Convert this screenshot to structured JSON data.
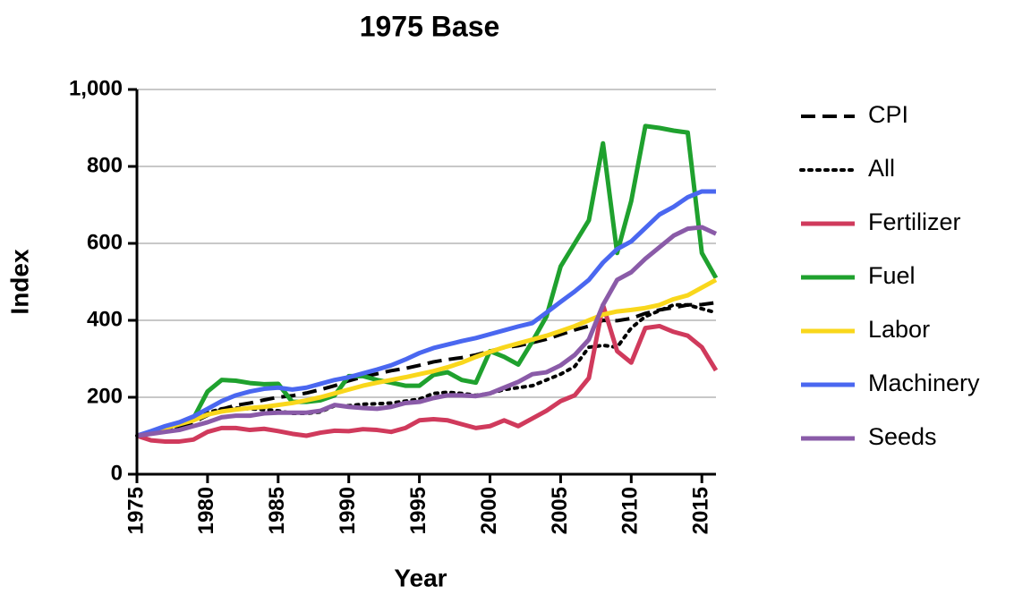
{
  "chart_data": {
    "type": "line",
    "title": "1975 Base",
    "xlabel": "Year",
    "ylabel": "Index",
    "x": [
      1975,
      1976,
      1977,
      1978,
      1979,
      1980,
      1981,
      1982,
      1983,
      1984,
      1985,
      1986,
      1987,
      1988,
      1989,
      1990,
      1991,
      1992,
      1993,
      1994,
      1995,
      1996,
      1997,
      1998,
      1999,
      2000,
      2001,
      2002,
      2003,
      2004,
      2005,
      2006,
      2007,
      2008,
      2009,
      2010,
      2011,
      2012,
      2013,
      2014,
      2015,
      2016
    ],
    "xlim": [
      1975,
      2016
    ],
    "xticks": [
      1975,
      1980,
      1985,
      1990,
      1995,
      2000,
      2005,
      2010,
      2015
    ],
    "ylim": [
      0,
      1000
    ],
    "yticks": [
      0,
      200,
      400,
      600,
      800,
      {
        "value": 1000,
        "label": "1,000"
      }
    ],
    "grid": true,
    "legend": "right",
    "series": [
      {
        "name": "CPI",
        "color": "#000000",
        "style": "dashed",
        "values": [
          100,
          106,
          113,
          121,
          135,
          153,
          169,
          179,
          185,
          193,
          200,
          204,
          211,
          220,
          230,
          243,
          253,
          261,
          269,
          275,
          283,
          292,
          298,
          303,
          310,
          320,
          329,
          334,
          342,
          351,
          363,
          375,
          385,
          400,
          399,
          405,
          418,
          427,
          433,
          440,
          441,
          446
        ]
      },
      {
        "name": "All",
        "color": "#000000",
        "style": "dotted",
        "values": [
          100,
          105,
          113,
          125,
          145,
          160,
          170,
          172,
          170,
          168,
          165,
          158,
          158,
          162,
          178,
          178,
          182,
          183,
          185,
          190,
          195,
          210,
          213,
          210,
          205,
          210,
          220,
          225,
          230,
          245,
          260,
          280,
          330,
          335,
          330,
          380,
          410,
          425,
          440,
          440,
          430,
          420
        ]
      },
      {
        "name": "Fertilizer",
        "color": "#d03a5c",
        "style": "solid",
        "values": [
          100,
          88,
          85,
          85,
          90,
          110,
          120,
          120,
          115,
          118,
          112,
          105,
          100,
          108,
          113,
          112,
          117,
          115,
          110,
          120,
          140,
          143,
          140,
          130,
          120,
          125,
          140,
          125,
          145,
          165,
          190,
          205,
          250,
          440,
          320,
          290,
          380,
          385,
          370,
          360,
          330,
          270
        ]
      },
      {
        "name": "Fuel",
        "color": "#1fa12e",
        "style": "solid",
        "values": [
          100,
          110,
          120,
          130,
          145,
          215,
          245,
          243,
          237,
          234,
          235,
          188,
          188,
          192,
          205,
          255,
          255,
          245,
          238,
          230,
          230,
          258,
          265,
          245,
          238,
          320,
          305,
          285,
          345,
          410,
          540,
          600,
          660,
          860,
          575,
          710,
          905,
          900,
          893,
          888,
          575,
          510
        ]
      },
      {
        "name": "Labor",
        "color": "#f9d71c",
        "style": "solid",
        "values": [
          100,
          110,
          120,
          130,
          140,
          155,
          163,
          168,
          172,
          175,
          180,
          185,
          192,
          200,
          210,
          220,
          230,
          238,
          245,
          252,
          260,
          268,
          278,
          290,
          305,
          318,
          330,
          340,
          350,
          360,
          372,
          385,
          400,
          415,
          423,
          427,
          432,
          440,
          455,
          465,
          485,
          505
        ]
      },
      {
        "name": "Machinery",
        "color": "#4a67f0",
        "style": "solid",
        "values": [
          100,
          112,
          125,
          135,
          150,
          170,
          190,
          205,
          215,
          222,
          225,
          220,
          225,
          235,
          245,
          252,
          262,
          272,
          283,
          298,
          315,
          328,
          337,
          346,
          354,
          364,
          374,
          384,
          393,
          420,
          448,
          475,
          505,
          550,
          585,
          605,
          640,
          675,
          695,
          720,
          735,
          735
        ]
      },
      {
        "name": "Seeds",
        "color": "#8a5ba8",
        "style": "solid",
        "values": [
          100,
          105,
          110,
          115,
          125,
          135,
          148,
          152,
          152,
          158,
          160,
          160,
          160,
          165,
          180,
          175,
          172,
          170,
          175,
          185,
          188,
          198,
          205,
          205,
          203,
          210,
          225,
          240,
          260,
          265,
          283,
          310,
          350,
          440,
          505,
          525,
          560,
          590,
          620,
          638,
          642,
          625
        ]
      }
    ]
  }
}
